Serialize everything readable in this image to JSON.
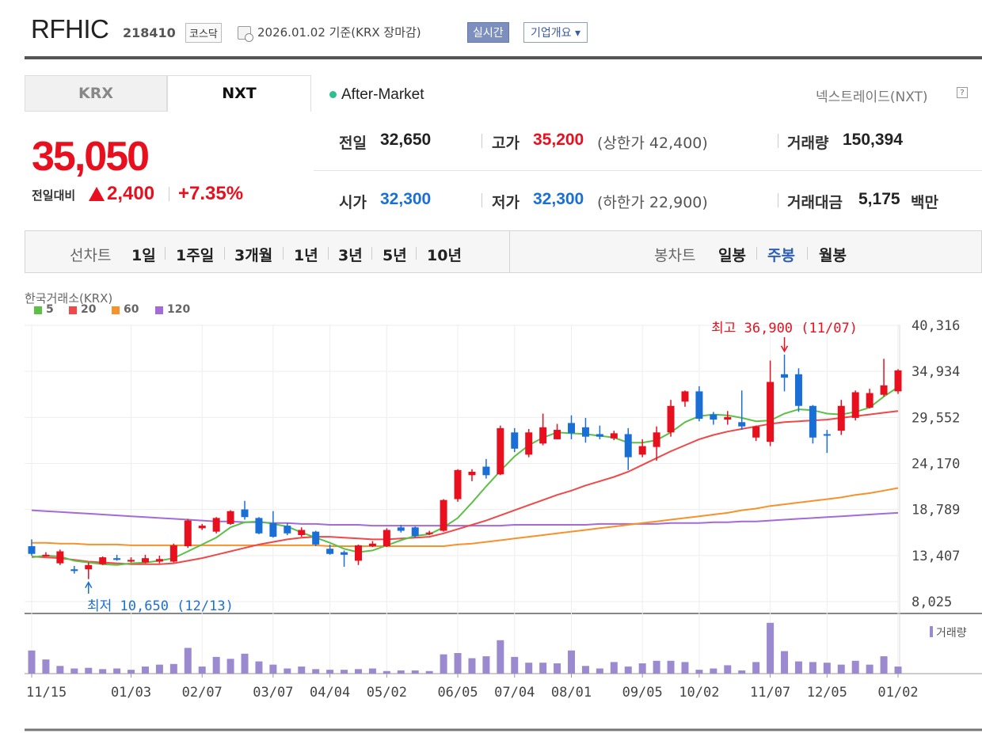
{
  "header": {
    "name": "RFHIC",
    "code": "218410",
    "market": "코스닥",
    "date_text": "2026.01.02  기준(KRX 장마감)",
    "realtime_button": "실시간",
    "company_button": "기업개요 ▾"
  },
  "tabs": [
    "KRX",
    "NXT"
  ],
  "session": "After-Market",
  "nxt_link": "넥스트레이드(NXT)",
  "quote": {
    "price": "35,050",
    "change_label": "전일대비",
    "change": "2,400",
    "change_pct": "+7.35%",
    "prev_close_label": "전일",
    "prev_close": "32,650",
    "high_label": "고가",
    "high": "35,200",
    "upper_limit": "(상한가 42,400)",
    "volume_label": "거래량",
    "volume": "150,394",
    "open_label": "시가",
    "open": "32,300",
    "low_label": "저가",
    "low": "32,300",
    "lower_limit": "(하한가 22,900)",
    "amount_label": "거래대금",
    "amount": "5,175",
    "amount_unit": "백만"
  },
  "colors": {
    "up": "#e8101e",
    "down": "#1a6fd6",
    "ma5": "#5cc046",
    "ma20": "#f04848",
    "ma60": "#f7922a",
    "ma120": "#a46ad6",
    "volume": "#9b8ad0"
  },
  "period_bar": {
    "line_label": "선차트",
    "line_items": [
      "1일",
      "1주일",
      "3개월",
      "1년",
      "3년",
      "5년",
      "10년"
    ],
    "candle_label": "봉차트",
    "candle_items": [
      "일봉",
      "주봉",
      "월봉"
    ],
    "candle_selected": "주봉"
  },
  "chart_data": {
    "type": "candlestick",
    "source": "한국거래소(KRX)",
    "legend": [
      "5",
      "20",
      "60",
      "120"
    ],
    "y_ticks": [
      "40,316",
      "34,934",
      "29,552",
      "24,170",
      "18,789",
      "13,407",
      "8,025"
    ],
    "ylim": [
      8025,
      40316
    ],
    "x_ticks": [
      "11/15",
      "01/03",
      "02/07",
      "03/07",
      "04/04",
      "05/02",
      "06/05",
      "07/04",
      "08/01",
      "09/05",
      "10/02",
      "11/07",
      "12/05",
      "01/02"
    ],
    "high_label": "최고 36,900 (11/07)",
    "low_label": "최저 10,650 (12/13)",
    "volume_label": "거래량",
    "candles": [
      [
        14500,
        13600,
        15300,
        13400
      ],
      [
        13500,
        13500,
        13800,
        13300
      ],
      [
        12500,
        13900,
        14100,
        12300
      ],
      [
        11800,
        11600,
        12200,
        11300
      ],
      [
        11800,
        12300,
        12600,
        10650
      ],
      [
        12400,
        13200,
        13300,
        12300
      ],
      [
        13100,
        12900,
        13500,
        12800
      ],
      [
        12700,
        12900,
        13200,
        12600
      ],
      [
        12600,
        13100,
        13500,
        12500
      ],
      [
        12700,
        13000,
        13400,
        12500
      ],
      [
        12700,
        14600,
        14800,
        12600
      ],
      [
        14500,
        17500,
        17700,
        14300
      ],
      [
        16600,
        16900,
        17100,
        16400
      ],
      [
        16200,
        17800,
        17900,
        16000
      ],
      [
        17100,
        18600,
        18700,
        17000
      ],
      [
        18800,
        17900,
        19800,
        17600
      ],
      [
        17800,
        16000,
        17900,
        15900
      ],
      [
        17200,
        15600,
        18600,
        15500
      ],
      [
        16900,
        16000,
        17200,
        15800
      ],
      [
        15800,
        16400,
        16700,
        15600
      ],
      [
        16200,
        14700,
        16300,
        14500
      ],
      [
        14200,
        13600,
        14700,
        13500
      ],
      [
        13800,
        13500,
        14000,
        12100
      ],
      [
        12800,
        14600,
        14700,
        12300
      ],
      [
        14500,
        14800,
        15100,
        14400
      ],
      [
        14500,
        16400,
        16600,
        14400
      ],
      [
        16700,
        16300,
        17000,
        16100
      ],
      [
        16700,
        15700,
        16800,
        15500
      ],
      [
        16000,
        16100,
        16300,
        15800
      ],
      [
        16300,
        19900,
        20000,
        16200
      ],
      [
        20000,
        23400,
        23500,
        19700
      ],
      [
        22800,
        23200,
        23500,
        22100
      ],
      [
        23800,
        22800,
        24700,
        22400
      ],
      [
        22900,
        28300,
        28600,
        22800
      ],
      [
        27800,
        25900,
        28300,
        25500
      ],
      [
        25200,
        27800,
        28200,
        24900
      ],
      [
        26500,
        28400,
        30000,
        26300
      ],
      [
        27000,
        28100,
        28800,
        27000
      ],
      [
        28900,
        27700,
        29800,
        27000
      ],
      [
        28400,
        27300,
        29500,
        26600
      ],
      [
        27600,
        27300,
        28600,
        27000
      ],
      [
        27100,
        27700,
        28000,
        26900
      ],
      [
        27600,
        24900,
        28300,
        23400
      ],
      [
        25200,
        26200,
        27000,
        24900
      ],
      [
        26100,
        27800,
        28500,
        24500
      ],
      [
        27800,
        30900,
        31600,
        27300
      ],
      [
        31400,
        32600,
        32700,
        30800
      ],
      [
        32600,
        29400,
        33200,
        29100
      ],
      [
        29900,
        29300,
        30200,
        28700
      ],
      [
        29300,
        29600,
        30300,
        28700
      ],
      [
        29000,
        28500,
        32700,
        28100
      ],
      [
        27200,
        28500,
        28600,
        26800
      ],
      [
        26700,
        33700,
        36200,
        26200
      ],
      [
        34600,
        34200,
        36900,
        32600
      ],
      [
        34600,
        30900,
        35300,
        30200
      ],
      [
        30900,
        27200,
        31000,
        26500
      ],
      [
        27600,
        27500,
        28100,
        25400
      ],
      [
        28000,
        30900,
        31600,
        27500
      ],
      [
        29500,
        32500,
        32700,
        29200
      ],
      [
        30700,
        32400,
        32900,
        30600
      ],
      [
        32200,
        33300,
        36400,
        32000
      ],
      [
        32600,
        35050,
        35200,
        32300
      ]
    ],
    "ma5": [
      13200,
      13400,
      13300,
      12800,
      12600,
      12400,
      12300,
      12500,
      12600,
      12800,
      13100,
      13900,
      14700,
      15500,
      16700,
      17300,
      17400,
      17100,
      16800,
      16100,
      15500,
      14900,
      14200,
      13800,
      14000,
      14600,
      15200,
      15700,
      15900,
      16700,
      17800,
      19600,
      21500,
      23300,
      25000,
      26300,
      27200,
      27800,
      27700,
      27600,
      27400,
      27200,
      26600,
      26600,
      26900,
      27800,
      29000,
      29700,
      29900,
      29800,
      29500,
      29100,
      29200,
      30000,
      30500,
      30400,
      30000,
      29900,
      30200,
      30700,
      32000,
      33100
    ],
    "ma20": [
      13300,
      13200,
      13100,
      12900,
      12700,
      12600,
      12500,
      12400,
      12400,
      12400,
      12500,
      12800,
      13100,
      13500,
      13900,
      14300,
      14700,
      15000,
      15300,
      15500,
      15600,
      15600,
      15500,
      15400,
      15300,
      15300,
      15400,
      15500,
      15600,
      16000,
      16500,
      17000,
      17500,
      18100,
      18700,
      19300,
      19900,
      20500,
      21000,
      21600,
      22100,
      22600,
      23200,
      24000,
      24800,
      25600,
      26300,
      27000,
      27500,
      27900,
      28200,
      28500,
      28800,
      29000,
      29100,
      29200,
      29300,
      29500,
      29700,
      29900,
      30100,
      30300
    ],
    "ma60": [
      14900,
      14900,
      14800,
      14800,
      14700,
      14700,
      14700,
      14600,
      14600,
      14600,
      14600,
      14600,
      14600,
      14600,
      14600,
      14600,
      14600,
      14600,
      14600,
      14600,
      14600,
      14500,
      14500,
      14500,
      14500,
      14500,
      14500,
      14500,
      14500,
      14500,
      14700,
      14800,
      15000,
      15200,
      15400,
      15600,
      15800,
      16000,
      16200,
      16400,
      16600,
      16800,
      17000,
      17200,
      17400,
      17600,
      17800,
      18000,
      18200,
      18400,
      18700,
      18900,
      19200,
      19400,
      19600,
      19800,
      20000,
      20200,
      20500,
      20700,
      21000,
      21300
    ],
    "ma120": [
      18700,
      18600,
      18500,
      18400,
      18300,
      18200,
      18100,
      18000,
      17900,
      17800,
      17700,
      17600,
      17500,
      17400,
      17400,
      17300,
      17300,
      17200,
      17200,
      17100,
      17100,
      17000,
      17000,
      17000,
      16900,
      16900,
      16900,
      16900,
      16900,
      16900,
      16900,
      16900,
      16900,
      16900,
      17000,
      17000,
      17000,
      17000,
      17000,
      17000,
      17100,
      17100,
      17100,
      17100,
      17100,
      17200,
      17200,
      17200,
      17300,
      17300,
      17400,
      17400,
      17500,
      17600,
      17700,
      17800,
      17900,
      18000,
      18100,
      18200,
      18300,
      18400
    ],
    "volume": [
      36,
      22,
      12,
      8,
      9,
      7,
      8,
      6,
      11,
      14,
      15,
      40,
      11,
      26,
      23,
      31,
      19,
      14,
      8,
      11,
      7,
      6,
      6,
      7,
      8,
      4,
      5,
      5,
      4,
      30,
      32,
      24,
      27,
      52,
      26,
      17,
      17,
      16,
      36,
      12,
      8,
      18,
      11,
      16,
      20,
      20,
      18,
      6,
      8,
      13,
      5,
      18,
      79,
      35,
      19,
      18,
      17,
      14,
      20,
      14,
      27,
      11
    ]
  }
}
